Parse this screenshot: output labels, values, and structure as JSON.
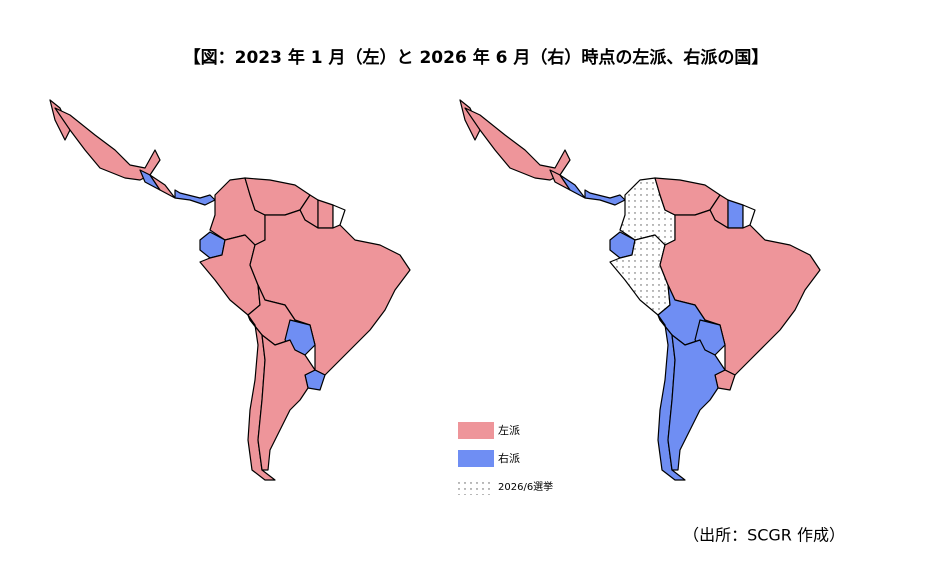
{
  "title": "【図：2023 年 1 月（左）と 2026 年 6 月（右）時点の左派、右派の国】",
  "legend": {
    "items": [
      {
        "label": "左派"
      },
      {
        "label": "右派"
      },
      {
        "label": "2026/6選挙"
      }
    ]
  },
  "source": "（出所：SCGR 作成）"
}
